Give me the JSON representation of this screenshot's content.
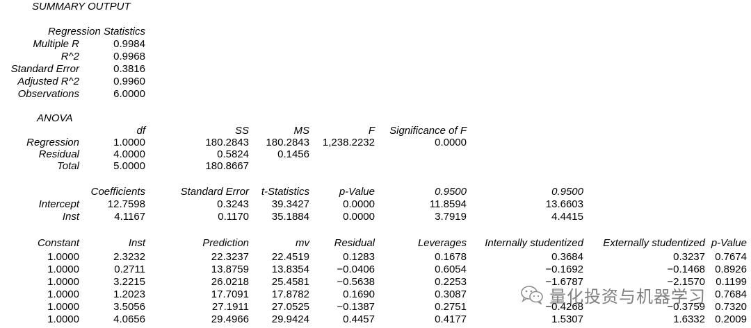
{
  "title": "SUMMARY OUTPUT",
  "regression_statistics": {
    "heading": "Regression Statistics",
    "rows": [
      {
        "label": "Multiple R",
        "value": "0.9984"
      },
      {
        "label": "R^2",
        "value": "0.9968"
      },
      {
        "label": "Standard Error",
        "value": "0.3816"
      },
      {
        "label": "Adjusted R^2",
        "value": "0.9960"
      },
      {
        "label": "Observations",
        "value": "6.0000"
      }
    ]
  },
  "anova": {
    "heading": "ANOVA",
    "headers": [
      "df",
      "SS",
      "MS",
      "F",
      "Significance of F"
    ],
    "rows": [
      {
        "label": "Regression",
        "cells": [
          "1.0000",
          "180.2843",
          "180.2843",
          "1,238.2232",
          "0.0000"
        ]
      },
      {
        "label": "Residual",
        "cells": [
          "4.0000",
          "0.5824",
          "0.1456",
          "",
          ""
        ]
      },
      {
        "label": "Total",
        "cells": [
          "5.0000",
          "180.8667",
          "",
          "",
          ""
        ]
      }
    ]
  },
  "coefficients": {
    "headers": [
      "Coefficients",
      "Standard Error",
      "t-Statistics",
      "p-Value",
      "0.9500",
      "0.9500"
    ],
    "rows": [
      {
        "label": "Intercept",
        "cells": [
          "12.7598",
          "0.3243",
          "39.3427",
          "0.0000",
          "11.8594",
          "13.6603"
        ]
      },
      {
        "label": "Inst",
        "cells": [
          "4.1167",
          "0.1170",
          "35.1884",
          "0.0000",
          "3.7919",
          "4.4415"
        ]
      }
    ]
  },
  "residuals": {
    "headers": [
      "Constant",
      "Inst",
      "Prediction",
      "mv",
      "Residual",
      "Leverages",
      "Internally studentized",
      "Externally studentized",
      "p-Value"
    ],
    "rows": [
      [
        "1.0000",
        "2.3232",
        "22.3237",
        "22.4519",
        "0.1283",
        "0.1678",
        "0.3684",
        "0.3237",
        "0.7674"
      ],
      [
        "1.0000",
        "0.2711",
        "13.8759",
        "13.8354",
        "−0.0406",
        "0.6054",
        "−0.1692",
        "−0.1468",
        "0.8926"
      ],
      [
        "1.0000",
        "3.2215",
        "26.0218",
        "25.4581",
        "−0.5638",
        "0.2253",
        "−1.6787",
        "−2.1570",
        "0.1199"
      ],
      [
        "1.0000",
        "1.2023",
        "17.7091",
        "17.8782",
        "0.1690",
        "0.3087",
        "",
        "",
        "0.7684"
      ],
      [
        "1.0000",
        "3.5056",
        "27.1911",
        "27.0525",
        "−0.1387",
        "0.2751",
        "−0.4268",
        "−0.3759",
        "0.7320"
      ],
      [
        "1.0000",
        "4.0656",
        "29.4966",
        "29.9424",
        "0.4457",
        "0.4177",
        "1.5307",
        "1.6332",
        "0.2009"
      ]
    ]
  },
  "watermark": {
    "icon": "wechat-icon",
    "text": "量化投资与机器学习"
  }
}
